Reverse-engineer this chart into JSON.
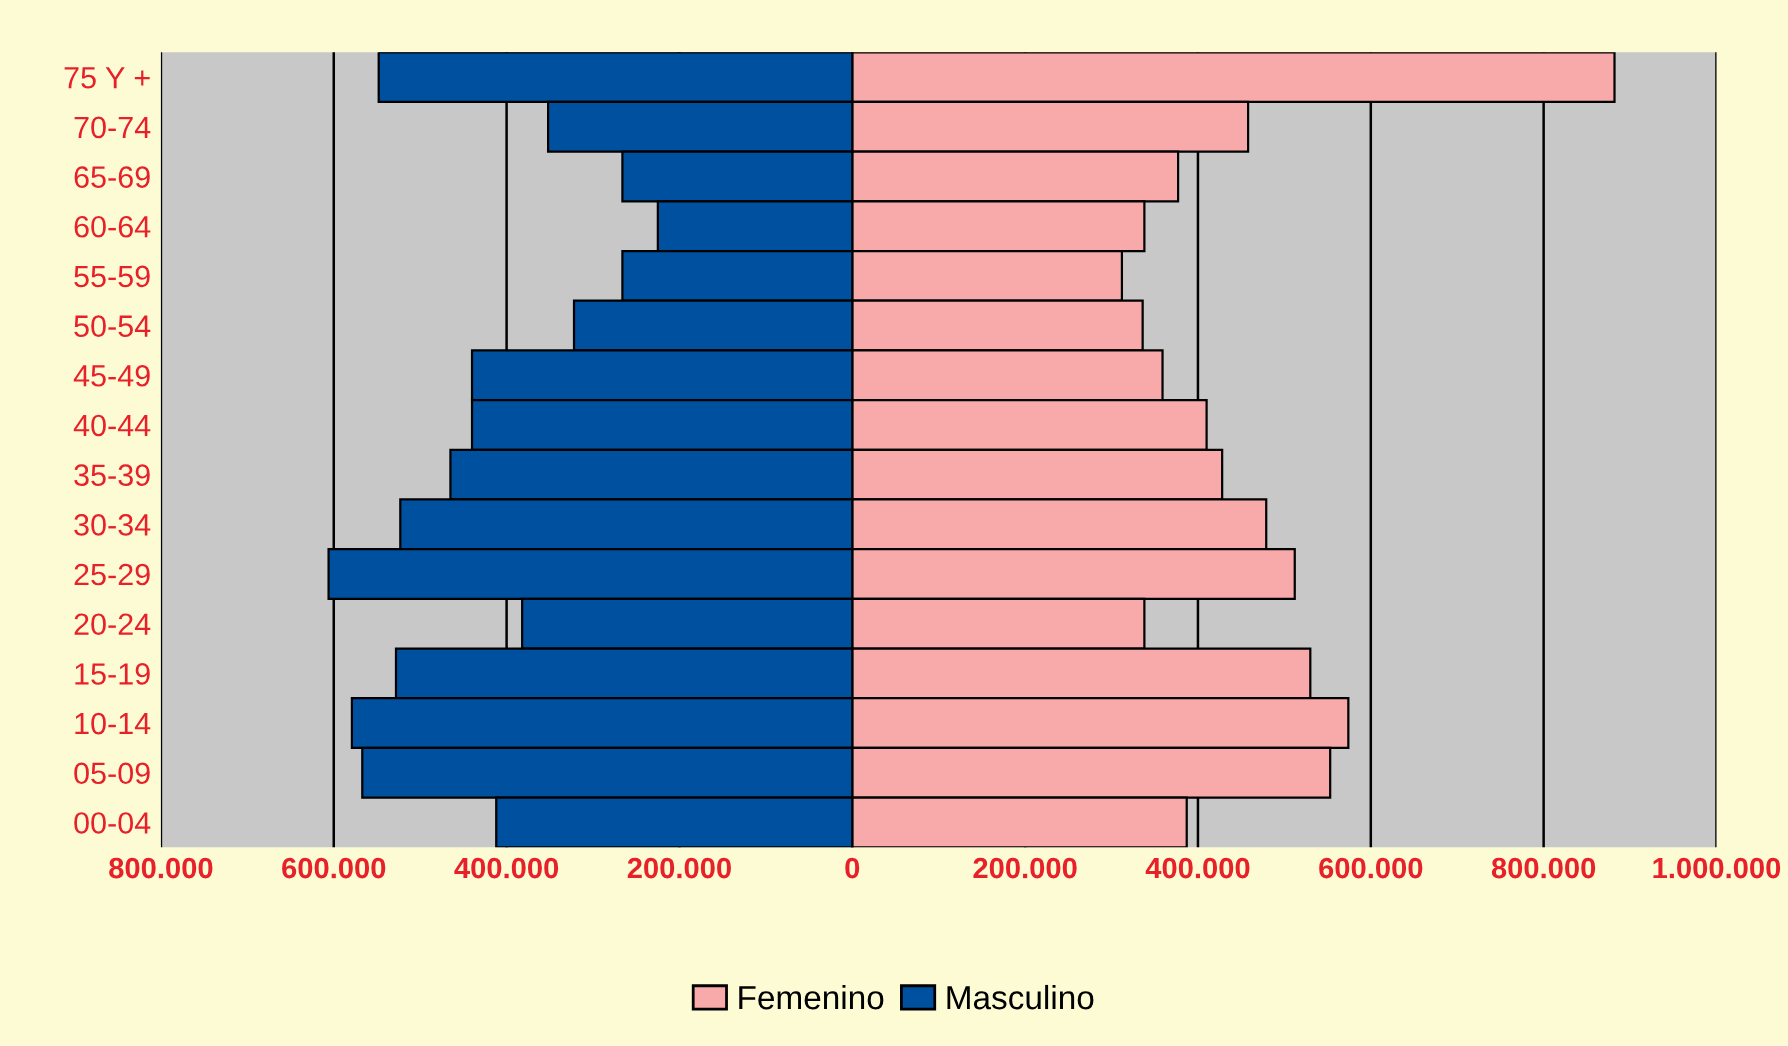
{
  "chart_data": {
    "type": "bar",
    "orientation": "horizontal",
    "categories": [
      "75 Y +",
      "70-74",
      "65-69",
      "60-64",
      "55-59",
      "50-54",
      "45-49",
      "40-44",
      "35-39",
      "30-34",
      "25-29",
      "20-24",
      "15-19",
      "10-14",
      "05-09",
      "00-04"
    ],
    "series": [
      {
        "name": "Femenino",
        "color": "#f8aaaa",
        "values": [
          882000,
          458000,
          377000,
          338000,
          312000,
          336000,
          359000,
          410000,
          428000,
          479000,
          512000,
          338000,
          530000,
          574000,
          553000,
          387000
        ]
      },
      {
        "name": "Masculino",
        "color": "#0050a0",
        "values": [
          -548000,
          -352000,
          -266000,
          -225000,
          -266000,
          -322000,
          -440000,
          -440000,
          -465000,
          -523000,
          -606000,
          -382000,
          -528000,
          -579000,
          -567000,
          -412000
        ]
      }
    ],
    "xlim": [
      -800000,
      1000000
    ],
    "xticks": [
      {
        "value": -800000,
        "label": "800.000"
      },
      {
        "value": -600000,
        "label": "600.000"
      },
      {
        "value": -400000,
        "label": "400.000"
      },
      {
        "value": -200000,
        "label": "200.000"
      },
      {
        "value": 0,
        "label": "0"
      },
      {
        "value": 200000,
        "label": "200.000"
      },
      {
        "value": 400000,
        "label": "400.000"
      },
      {
        "value": 600000,
        "label": "600.000"
      },
      {
        "value": 800000,
        "label": "800.000"
      },
      {
        "value": 1000000,
        "label": "1.000.000"
      }
    ],
    "stacked": true,
    "grid": "x",
    "legend": "bottom"
  }
}
